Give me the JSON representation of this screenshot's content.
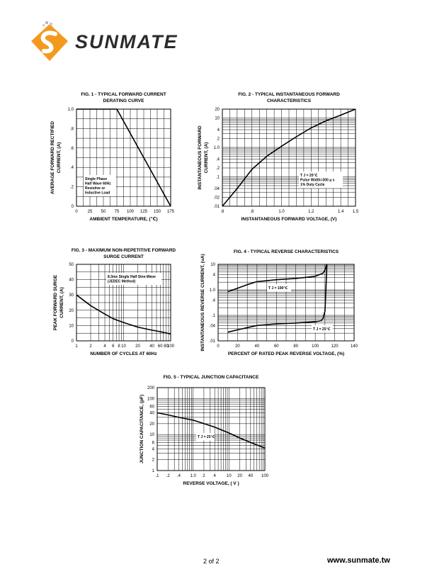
{
  "brand": {
    "name": "SUNMATE",
    "url": "www.sunmate.tw"
  },
  "footer": {
    "page": "2 of 2"
  },
  "colors": {
    "logo_orange": "#f39a1e",
    "logo_dark": "#2b2b2b",
    "line": "#000000"
  },
  "chart_data": [
    {
      "id": "fig1",
      "type": "line",
      "title": [
        "FIG. 1 - TYPICAL FORWARD CURRENT",
        "DERATING CURVE"
      ],
      "xlabel": "AMBIENT TEMPERATURE, (℃)",
      "ylabel": [
        "AVERAGE FORWARD RECTIFIED",
        "CURRENT, (A)"
      ],
      "xlim": [
        0,
        175
      ],
      "ylim": [
        0,
        1.0
      ],
      "grid": true,
      "x_ticks": [
        0,
        25,
        50,
        75,
        100,
        125,
        150,
        175
      ],
      "x_tick_labels": [
        "0",
        "25",
        "50",
        "75",
        "100",
        "125",
        "150",
        "175"
      ],
      "y_ticks": [
        0,
        0.2,
        0.4,
        0.6,
        0.8,
        1.0
      ],
      "y_tick_labels": [
        "0",
        ".2",
        ".4",
        ".6",
        ".8",
        "1.0"
      ],
      "annotation": [
        "Single Phase",
        "Half Wave 60Hz",
        "Resistive or",
        "Inductive Load"
      ],
      "series": [
        {
          "x": [
            0,
            75,
            175
          ],
          "y": [
            1.0,
            1.0,
            0
          ]
        }
      ]
    },
    {
      "id": "fig2",
      "type": "line",
      "title": [
        "FIG. 2 - TYPICAL INSTANTANEOUS FORWARD",
        "CHARACTERISTICS"
      ],
      "xlabel": "INSTANTANEOUS FORWARD VOLTAGE, (V)",
      "ylabel": [
        "INSTANTANEOUS FORWARD",
        "CURRENT, (A)"
      ],
      "xlim": [
        0.6,
        1.5
      ],
      "ylim": [
        0.01,
        20
      ],
      "yscale": "log",
      "grid": true,
      "x_ticks": [
        0.6,
        0.8,
        1.0,
        1.2,
        1.4,
        1.5
      ],
      "x_tick_labels": [
        ".6",
        ".8",
        "1.0",
        "1.2",
        "1.4",
        "1.5"
      ],
      "y_ticks": [
        0.01,
        0.02,
        0.04,
        0.1,
        0.2,
        0.4,
        1,
        2,
        4,
        10,
        20
      ],
      "y_tick_labels": [
        ".01",
        ".02",
        ".04",
        ".1",
        ".2",
        ".4",
        "1.0",
        "2",
        "4",
        "10",
        "20"
      ],
      "annotation": [
        "T J = 25℃",
        "Pulse Width=300 μ s",
        "1% Duty Cycle"
      ],
      "series": [
        {
          "x": [
            0.6,
            0.7,
            0.8,
            0.9,
            1.0,
            1.1,
            1.2,
            1.3,
            1.4,
            1.5
          ],
          "y": [
            0.01,
            0.04,
            0.18,
            0.5,
            1.1,
            2.3,
            4.6,
            8,
            12.5,
            20
          ]
        }
      ]
    },
    {
      "id": "fig3",
      "type": "line",
      "title": [
        "FIG. 3 - MAXIMUM NON-REPETITIVE FORWARD",
        "SURGE CURRENT"
      ],
      "xlabel": "NUMBER OF CYCLES AT 60Hz",
      "ylabel": [
        "PEAK FORWARD SURGE",
        "CURRENT, (A)"
      ],
      "xlim": [
        1,
        100
      ],
      "xscale": "log",
      "ylim": [
        0,
        50
      ],
      "grid": true,
      "x_ticks": [
        1,
        2,
        4,
        6,
        8,
        10,
        20,
        40,
        60,
        80,
        100
      ],
      "x_tick_labels": [
        "1",
        "2",
        "4",
        "6",
        "8",
        "10",
        "20",
        "40",
        "60",
        "80",
        "100"
      ],
      "y_ticks": [
        0,
        10,
        20,
        30,
        40,
        50
      ],
      "y_tick_labels": [
        "0",
        "10",
        "20",
        "30",
        "40",
        "50"
      ],
      "annotation": [
        "8.3ms Single Half Sine-Wave",
        "(JEDEC Method)"
      ],
      "series": [
        {
          "x": [
            1,
            2,
            4,
            6,
            10,
            20,
            40,
            60,
            100
          ],
          "y": [
            30,
            23,
            17.5,
            14.5,
            12,
            9,
            7,
            6,
            4.5
          ]
        }
      ]
    },
    {
      "id": "fig4",
      "type": "line",
      "title": [
        "FIG. 4 - TYPICAL REVERSE CHARACTERISTICS"
      ],
      "xlabel": "PERCENT OF RATED PEAK REVERSE VOLTAGE, (%)",
      "ylabel": [
        "INSTANTANEOUS REVERSE CURRENT, (uA)"
      ],
      "xlim": [
        0,
        140
      ],
      "ylim": [
        0.01,
        10
      ],
      "yscale": "log",
      "grid": true,
      "x_ticks": [
        0,
        20,
        40,
        60,
        80,
        100,
        120,
        140
      ],
      "x_tick_labels": [
        "0",
        "20",
        "40",
        "60",
        "80",
        "100",
        "120",
        "140"
      ],
      "y_ticks": [
        0.01,
        0.04,
        0.1,
        0.4,
        1,
        4,
        10
      ],
      "y_tick_labels": [
        ".01",
        ".04",
        ".1",
        ".4",
        "1.0",
        "4",
        "10"
      ],
      "series": [
        {
          "name": "T J = 100℃",
          "x": [
            10,
            20,
            30,
            40,
            60,
            80,
            100,
            108,
            110,
            111,
            112
          ],
          "y": [
            0.85,
            1.15,
            1.6,
            2.1,
            2.5,
            2.8,
            3.4,
            4.5,
            6,
            8,
            10
          ]
        },
        {
          "name": "T J = 25℃",
          "x": [
            10,
            20,
            30,
            40,
            60,
            80,
            100,
            106,
            108,
            110,
            111,
            112
          ],
          "y": [
            0.022,
            0.027,
            0.033,
            0.04,
            0.046,
            0.05,
            0.056,
            0.062,
            0.075,
            0.15,
            1,
            10
          ]
        }
      ]
    },
    {
      "id": "fig5",
      "type": "line",
      "title": [
        "FIG. 5 - TYPICAL JUNCTION CAPACITANCE"
      ],
      "xlabel": "REVERSE VOLTAGE, ( V )",
      "ylabel": [
        "JUNCTION CAPACITANCE, (pF)"
      ],
      "xlim": [
        0.1,
        100
      ],
      "xscale": "log",
      "ylim": [
        1,
        200
      ],
      "yscale": "log",
      "grid": true,
      "x_ticks": [
        0.1,
        0.2,
        0.4,
        1,
        2,
        4,
        10,
        20,
        40,
        100
      ],
      "x_tick_labels": [
        ".1",
        ".2",
        ".4",
        "1.0",
        "2",
        "4",
        "10",
        "20",
        "40",
        "100"
      ],
      "y_ticks": [
        1,
        2,
        4,
        6,
        10,
        20,
        40,
        60,
        100,
        200
      ],
      "y_tick_labels": [
        "1",
        "2",
        "4",
        "6",
        "10",
        "20",
        "40",
        "60",
        "100",
        "200"
      ],
      "annotation": [
        "T J = 25℃"
      ],
      "series": [
        {
          "x": [
            0.1,
            0.2,
            0.4,
            1,
            2,
            4,
            10,
            20,
            40,
            100
          ],
          "y": [
            40,
            35,
            30,
            25,
            20,
            16,
            11,
            8,
            6,
            4.2
          ]
        }
      ]
    }
  ]
}
